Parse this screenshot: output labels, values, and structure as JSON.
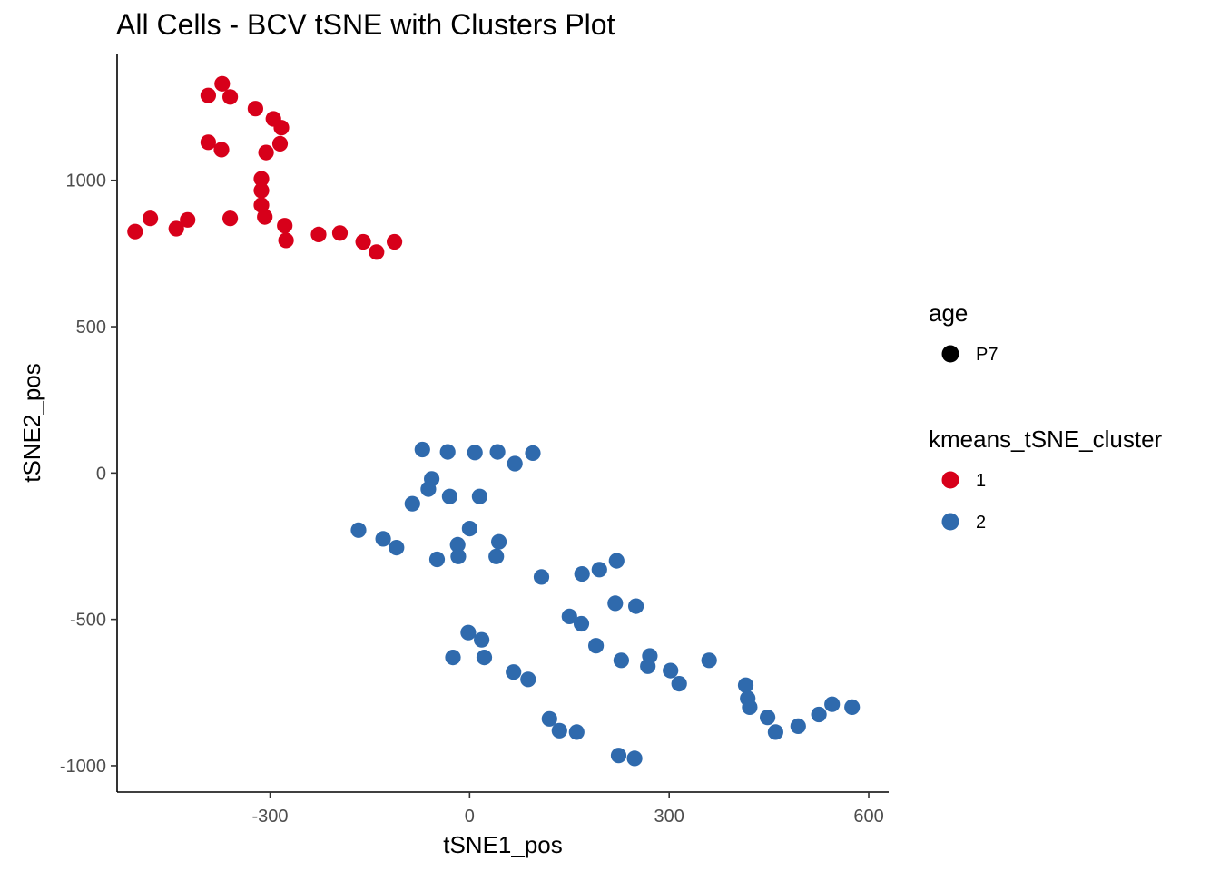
{
  "chart_data": {
    "type": "scatter",
    "title": "All Cells - BCV tSNE with Clusters Plot",
    "xlabel": "tSNE1_pos",
    "ylabel": "tSNE2_pos",
    "xlim": [
      -530,
      630
    ],
    "ylim": [
      -1090,
      1430
    ],
    "x_ticks": [
      -300,
      0,
      300,
      600
    ],
    "x_tick_labels": [
      "-300",
      "0",
      "300",
      "600"
    ],
    "y_ticks": [
      -1000,
      -500,
      0,
      500,
      1000
    ],
    "y_tick_labels": [
      "-1000",
      "-500",
      "0",
      "500",
      "1000"
    ],
    "grid": false,
    "legend_position": "right",
    "legends": [
      {
        "title": "age",
        "entries": [
          {
            "label": "P7",
            "color": "#000000"
          }
        ]
      },
      {
        "title": "kmeans_tSNE_cluster",
        "entries": [
          {
            "label": "1",
            "color": "#d7001a"
          },
          {
            "label": "2",
            "color": "#2f6aad"
          }
        ]
      }
    ],
    "series": [
      {
        "name": "1",
        "color": "#d7001a",
        "points": [
          [
            -372,
            1330
          ],
          [
            -393,
            1290
          ],
          [
            -360,
            1285
          ],
          [
            -322,
            1245
          ],
          [
            -295,
            1210
          ],
          [
            -283,
            1180
          ],
          [
            -393,
            1130
          ],
          [
            -373,
            1105
          ],
          [
            -285,
            1125
          ],
          [
            -306,
            1095
          ],
          [
            -313,
            1005
          ],
          [
            -313,
            965
          ],
          [
            -313,
            915
          ],
          [
            -308,
            875
          ],
          [
            -480,
            870
          ],
          [
            -503,
            825
          ],
          [
            -424,
            865
          ],
          [
            -441,
            835
          ],
          [
            -360,
            870
          ],
          [
            -278,
            845
          ],
          [
            -276,
            795
          ],
          [
            -227,
            815
          ],
          [
            -195,
            820
          ],
          [
            -160,
            790
          ],
          [
            -140,
            755
          ],
          [
            -113,
            790
          ]
        ]
      },
      {
        "name": "2",
        "color": "#2f6aad",
        "points": [
          [
            -71,
            80
          ],
          [
            -33,
            72
          ],
          [
            8,
            70
          ],
          [
            42,
            72
          ],
          [
            95,
            68
          ],
          [
            68,
            32
          ],
          [
            -57,
            -20
          ],
          [
            -62,
            -55
          ],
          [
            -30,
            -80
          ],
          [
            -86,
            -105
          ],
          [
            15,
            -80
          ],
          [
            -167,
            -195
          ],
          [
            -130,
            -225
          ],
          [
            -110,
            -255
          ],
          [
            0,
            -190
          ],
          [
            -18,
            -245
          ],
          [
            44,
            -235
          ],
          [
            -49,
            -295
          ],
          [
            -17,
            -285
          ],
          [
            40,
            -285
          ],
          [
            108,
            -355
          ],
          [
            169,
            -345
          ],
          [
            195,
            -330
          ],
          [
            221,
            -300
          ],
          [
            219,
            -445
          ],
          [
            250,
            -455
          ],
          [
            150,
            -490
          ],
          [
            168,
            -515
          ],
          [
            190,
            -590
          ],
          [
            -2,
            -545
          ],
          [
            18,
            -570
          ],
          [
            -25,
            -630
          ],
          [
            22,
            -630
          ],
          [
            228,
            -640
          ],
          [
            271,
            -625
          ],
          [
            268,
            -660
          ],
          [
            302,
            -675
          ],
          [
            315,
            -720
          ],
          [
            360,
            -640
          ],
          [
            66,
            -680
          ],
          [
            88,
            -705
          ],
          [
            120,
            -840
          ],
          [
            135,
            -880
          ],
          [
            161,
            -885
          ],
          [
            224,
            -965
          ],
          [
            248,
            -975
          ],
          [
            415,
            -725
          ],
          [
            418,
            -770
          ],
          [
            421,
            -800
          ],
          [
            448,
            -835
          ],
          [
            460,
            -885
          ],
          [
            494,
            -865
          ],
          [
            525,
            -825
          ],
          [
            545,
            -790
          ],
          [
            575,
            -800
          ]
        ]
      }
    ]
  }
}
